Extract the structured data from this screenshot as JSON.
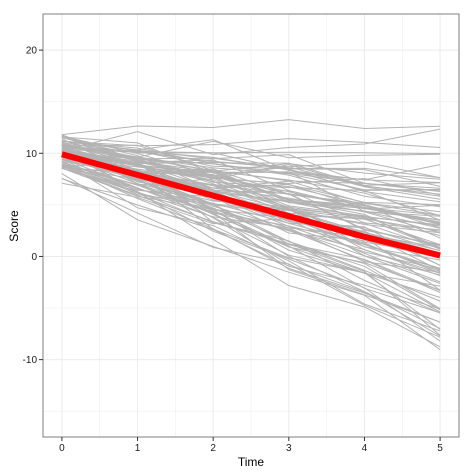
{
  "chart_data": {
    "type": "line",
    "xlabel": "Time",
    "ylabel": "Score",
    "x": [
      0,
      1,
      2,
      3,
      4,
      5
    ],
    "xlim": [
      -0.25,
      5.25
    ],
    "ylim": [
      -17.5,
      23.5
    ],
    "x_ticks": [
      0,
      1,
      2,
      3,
      4,
      5
    ],
    "y_ticks": [
      -10,
      0,
      10,
      20
    ],
    "grid": true,
    "legend": "none",
    "colors": {
      "individual": "#b3b3b3",
      "mean": "#ff0000",
      "grid": "#ebebeb",
      "panel_border": "#7f7f7f"
    },
    "mean_series": {
      "values": [
        9.9,
        7.9,
        5.9,
        3.9,
        1.9,
        0.1
      ]
    },
    "series_count": 100
  }
}
